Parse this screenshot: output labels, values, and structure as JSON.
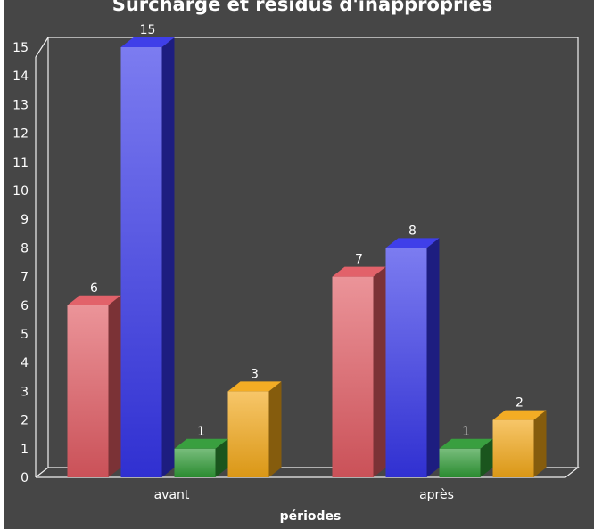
{
  "colors": {
    "background": "#464646",
    "grid": "#f0f0f0",
    "text": "#ffffff"
  },
  "chart_data": {
    "type": "bar",
    "title": "Surcharge et résidus d'inappropriés",
    "xlabel": "périodes",
    "ylabel": "",
    "categories": [
      "avant",
      "après"
    ],
    "ylim": [
      0,
      15
    ],
    "yticks": [
      "0",
      "1",
      "2",
      "3",
      "4",
      "5",
      "6",
      "7",
      "8",
      "9",
      "10",
      "11",
      "12",
      "13",
      "14",
      "15"
    ],
    "grid": false,
    "legend": "none",
    "style": "3d",
    "series": [
      {
        "values": [
          6,
          7
        ],
        "color": "#e05a62"
      },
      {
        "values": [
          15,
          8
        ],
        "color": "#3535e8"
      },
      {
        "values": [
          1,
          1
        ],
        "color": "#2f9a35"
      },
      {
        "values": [
          3,
          2
        ],
        "color": "#f2a818"
      }
    ]
  }
}
